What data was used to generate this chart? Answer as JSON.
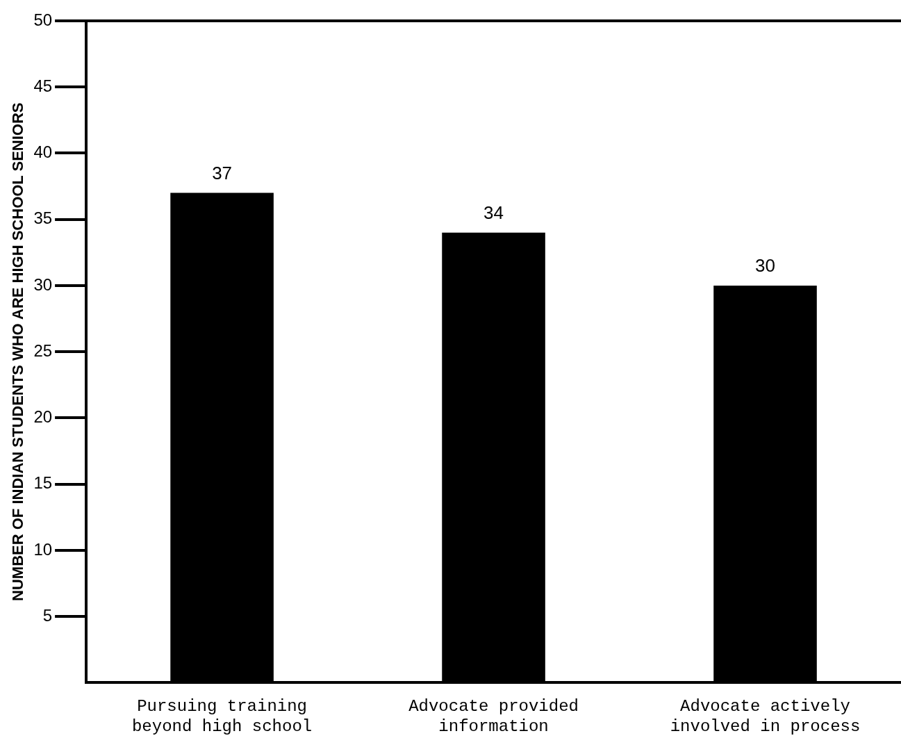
{
  "chart_data": {
    "type": "bar",
    "ylabel": "NUMBER OF INDIAN STUDENTS WHO ARE HIGH SCHOOL SENIORS",
    "categories": [
      "Pursuing training beyond high school",
      "Advocate provided information",
      "Advocate actively involved in process"
    ],
    "values": [
      37,
      34,
      30
    ],
    "color": "#000000",
    "data_labels": true,
    "grid": false,
    "legend": false,
    "ylim": [
      0,
      50
    ],
    "yticks": [
      5,
      10,
      15,
      20,
      25,
      30,
      35,
      40,
      45,
      50
    ]
  }
}
